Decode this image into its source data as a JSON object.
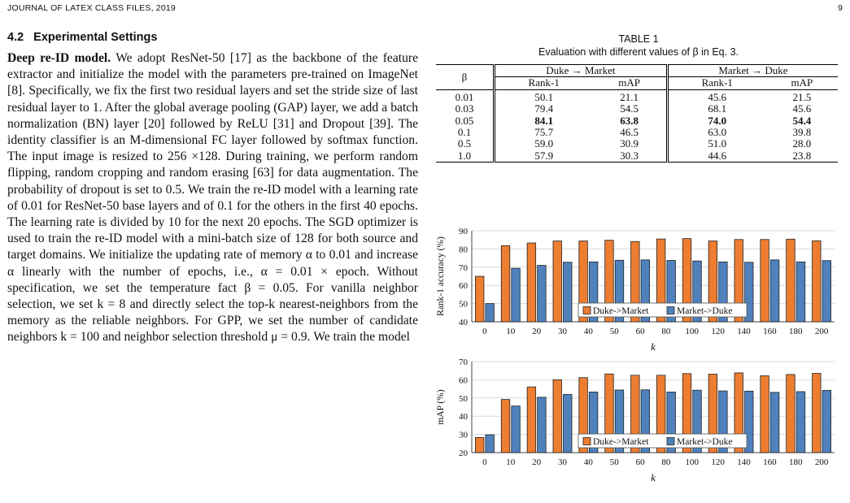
{
  "running_head": {
    "left": "JOURNAL OF LATEX CLASS FILES, 2019",
    "page": "9"
  },
  "section": {
    "number": "4.2",
    "title": "Experimental Settings"
  },
  "paragraph": {
    "lead": "Deep re-ID model.",
    "text": "We adopt ResNet-50 [17] as the backbone of the feature extractor and initialize the model with the parameters pre-trained on ImageNet [8]. Specifically, we fix the first two residual layers and set the stride size of last residual layer to 1. After the global average pooling (GAP) layer, we add a batch normalization (BN) layer [20] followed by ReLU [31] and Dropout [39]. The identity classifier is an M-dimensional FC layer followed by softmax function. The input image is resized to 256 ×128. During training, we perform random flipping, random cropping and random erasing [63] for data augmentation. The probability of dropout is set to 0.5. We train the re-ID model with a learning rate of 0.01 for ResNet-50 base layers and of 0.1 for the others in the first 40 epochs. The learning rate is divided by 10 for the next 20 epochs. The SGD optimizer is used to train the re-ID model with a mini-batch size of 128 for both source and target domains. We initialize the updating rate of memory α to 0.01 and increase α linearly with the number of epochs, i.e., α = 0.01 × epoch. Without specification, we set the temperature fact β = 0.05. For vanilla neighbor selection, we set k = 8 and directly select the top-k nearest-neighbors from the memory as the reliable neighbors. For GPP, we set the number of candidate neighbors k = 100 and neighbor selection threshold μ = 0.9. We train the model"
  },
  "table": {
    "label": "TABLE 1",
    "caption": "Evaluation with different values of β in Eq. 3.",
    "beta_header": "β",
    "groups": [
      "Duke → Market",
      "Market → Duke"
    ],
    "subheaders": [
      "Rank-1",
      "mAP",
      "Rank-1",
      "mAP"
    ],
    "rows": [
      {
        "beta": "0.01",
        "cells": [
          "50.1",
          "21.1",
          "45.6",
          "21.5"
        ],
        "bold": false
      },
      {
        "beta": "0.03",
        "cells": [
          "79.4",
          "54.5",
          "68.1",
          "45.6"
        ],
        "bold": false
      },
      {
        "beta": "0.05",
        "cells": [
          "84.1",
          "63.8",
          "74.0",
          "54.4"
        ],
        "bold": true
      },
      {
        "beta": "0.1",
        "cells": [
          "75.7",
          "46.5",
          "63.0",
          "39.8"
        ],
        "bold": false
      },
      {
        "beta": "0.5",
        "cells": [
          "59.0",
          "30.9",
          "51.0",
          "28.0"
        ],
        "bold": false
      },
      {
        "beta": "1.0",
        "cells": [
          "57.9",
          "30.3",
          "44.6",
          "23.8"
        ],
        "bold": false
      }
    ]
  },
  "colors": {
    "duke_market": "#ED7D31",
    "market_duke": "#4F81BD"
  },
  "chart_data": [
    {
      "type": "bar",
      "categories": [
        "0",
        "10",
        "20",
        "30",
        "40",
        "50",
        "60",
        "80",
        "100",
        "120",
        "140",
        "160",
        "180",
        "200"
      ],
      "series": [
        {
          "name": "Duke->Market",
          "values": [
            65,
            81.8,
            83.3,
            84.4,
            84.4,
            84.8,
            84.1,
            85.5,
            85.7,
            84.4,
            85.2,
            85.2,
            85.4,
            84.5
          ]
        },
        {
          "name": "Market->Duke",
          "values": [
            50,
            69.4,
            71,
            72.7,
            72.9,
            73.8,
            74,
            73.7,
            73.4,
            72.9,
            72.7,
            74,
            72.9,
            73.6
          ]
        }
      ],
      "xlabel": "k",
      "ylabel": "Rank-1 accuracy (%)",
      "ylim": [
        40,
        90
      ],
      "yticks": [
        "40",
        "50",
        "60",
        "70",
        "80",
        "90"
      ],
      "legend": "bottom-right"
    },
    {
      "type": "bar",
      "categories": [
        "0",
        "10",
        "20",
        "30",
        "40",
        "50",
        "60",
        "80",
        "100",
        "120",
        "140",
        "160",
        "180",
        "200"
      ],
      "series": [
        {
          "name": "Duke->Market",
          "values": [
            28.3,
            49.2,
            56.1,
            60,
            61.2,
            63.2,
            62.5,
            62.5,
            63.4,
            63.1,
            63.8,
            62.2,
            62.9,
            63.5
          ]
        },
        {
          "name": "Market->Duke",
          "values": [
            29.8,
            45.6,
            50.4,
            52,
            53.3,
            54.4,
            54.5,
            53.3,
            54.3,
            53.9,
            53.8,
            53.1,
            53.5,
            54.2
          ]
        }
      ],
      "xlabel": "k",
      "ylabel": "mAP (%)",
      "ylim": [
        20,
        70
      ],
      "yticks": [
        "20",
        "30",
        "40",
        "50",
        "60",
        "70"
      ],
      "legend": "bottom-right"
    }
  ]
}
